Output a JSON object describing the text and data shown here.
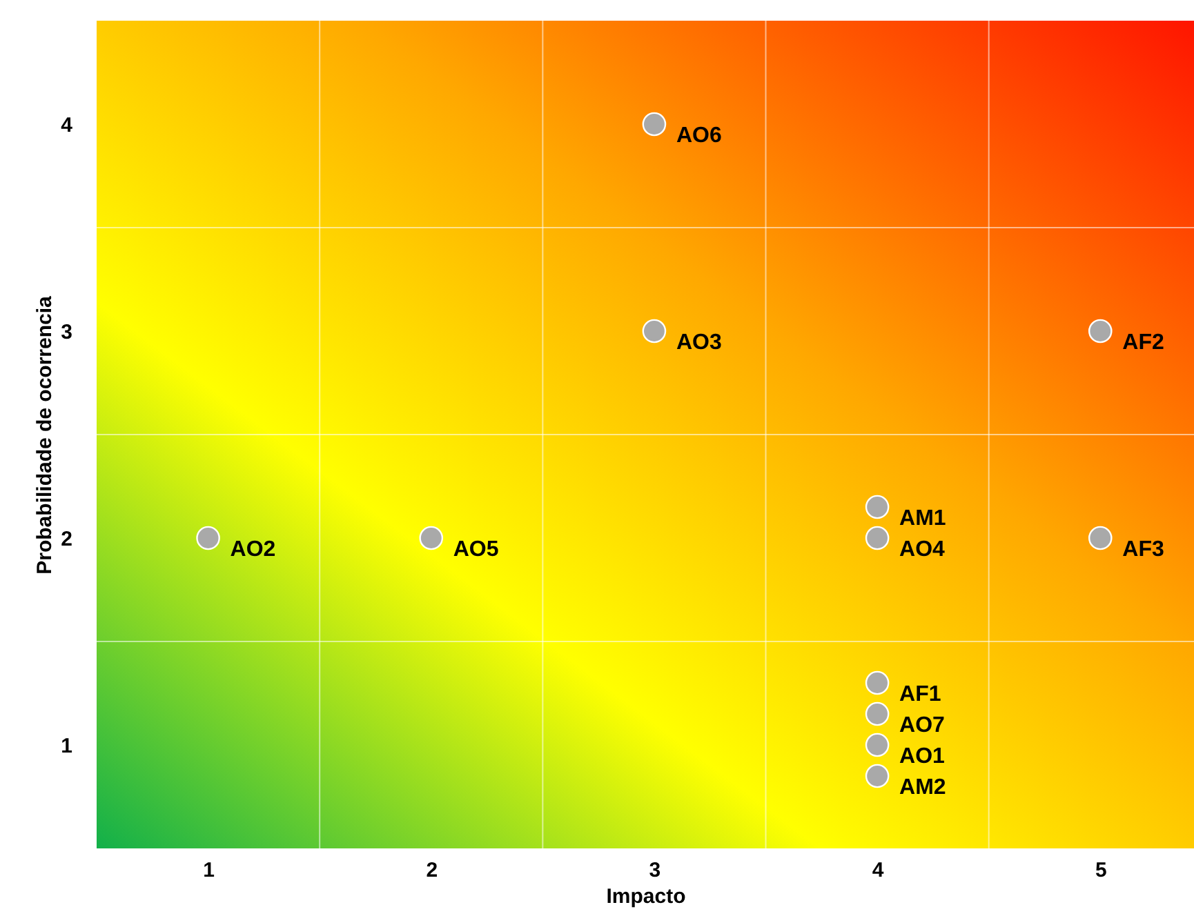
{
  "chart_data": {
    "type": "scatter",
    "xlabel": "Impacto",
    "ylabel": "Probabilidade de ocorrencia",
    "xlim": [
      0.5,
      5.42
    ],
    "ylim": [
      0.5,
      4.5
    ],
    "xticks": [
      1,
      {
        "value": 1.5,
        "label": null
      },
      2,
      {
        "value": 2.5,
        "label": null
      },
      3,
      {
        "value": 3.5,
        "label": null
      },
      4,
      {
        "value": 4.5,
        "label": null
      },
      5
    ],
    "yticks": [
      1,
      {
        "value": 1.5,
        "label": null
      },
      2,
      {
        "value": 2.5,
        "label": null
      },
      3,
      {
        "value": 3.5,
        "label": null
      },
      4
    ],
    "grid": true,
    "marker": "circle",
    "series": [
      {
        "color": "#a9a9a9",
        "x": [
          3,
          3,
          5,
          4,
          1,
          2,
          4,
          5,
          4,
          4,
          4,
          4
        ],
        "values": [
          4,
          3,
          3,
          2.15,
          2,
          2,
          2,
          2,
          1.3,
          1.15,
          1.0,
          0.85
        ]
      }
    ],
    "annotations": [
      {
        "text": "AO6",
        "x": 3,
        "y": 4
      },
      {
        "text": "AO3",
        "x": 3,
        "y": 3
      },
      {
        "text": "AF2",
        "x": 5,
        "y": 3
      },
      {
        "text": "AM1",
        "x": 4,
        "y": 2.15
      },
      {
        "text": "AO2",
        "x": 1,
        "y": 2
      },
      {
        "text": "AO5",
        "x": 2,
        "y": 2
      },
      {
        "text": "AO4",
        "x": 4,
        "y": 2
      },
      {
        "text": "AF3",
        "x": 5,
        "y": 2
      },
      {
        "text": "AF1",
        "x": 4,
        "y": 1.3
      },
      {
        "text": "AO7",
        "x": 4,
        "y": 1.15
      },
      {
        "text": "AO1",
        "x": 4,
        "y": 1.0
      },
      {
        "text": "AM2",
        "x": 4,
        "y": 0.85
      }
    ]
  }
}
